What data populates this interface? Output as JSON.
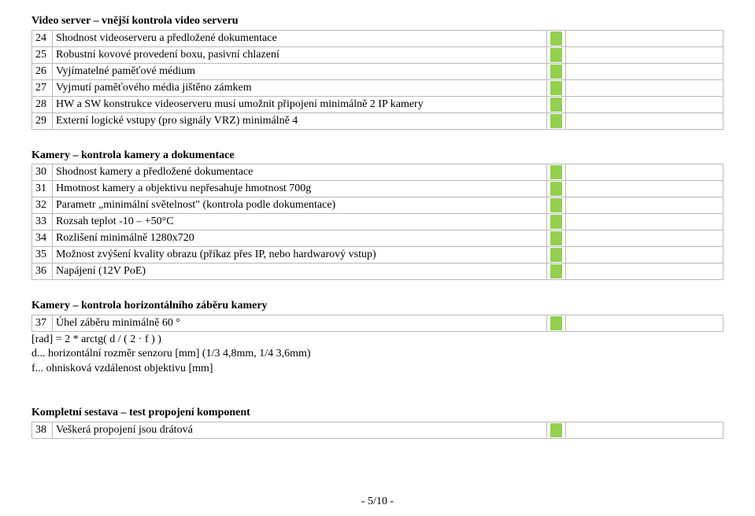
{
  "colors": {
    "mark_green": "#92d050",
    "border": "#b9b9b9",
    "text": "#000000",
    "bg": "#ffffff"
  },
  "sections": {
    "s1": {
      "heading": "Video server – vnější kontrola video serveru",
      "rows": [
        {
          "n": "24",
          "label": "Shodnost videoserveru a předložené dokumentace"
        },
        {
          "n": "25",
          "label": "Robustní kovové provedení boxu, pasivní chlazení"
        },
        {
          "n": "26",
          "label": "Vyjímatelné paměťové médium"
        },
        {
          "n": "27",
          "label": "Vyjmutí paměťového média jištěno zámkem"
        },
        {
          "n": "28",
          "label": "HW a SW konstrukce videoserveru musí umožnit připojení minimálně 2 IP kamery"
        },
        {
          "n": "29",
          "label": "Externí logické vstupy (pro signály VRZ) minimálně 4"
        }
      ]
    },
    "s2": {
      "heading": "Kamery – kontrola kamery a dokumentace",
      "rows": [
        {
          "n": "30",
          "label": "Shodnost kamery a předložené dokumentace"
        },
        {
          "n": "31",
          "label": "Hmotnost kamery a objektivu nepřesahuje hmotnost 700g"
        },
        {
          "n": "32",
          "label": "Parametr „minimální světelnost\" (kontrola podle dokumentace)"
        },
        {
          "n": "33",
          "label": "Rozsah teplot -10 – +50°C"
        },
        {
          "n": "34",
          "label": "Rozlišení minimálně 1280x720"
        },
        {
          "n": "35",
          "label": "Možnost zvýšení kvality obrazu (příkaz přes IP, nebo hardwarový vstup)"
        },
        {
          "n": "36",
          "label": "Napájení (12V PoE)"
        }
      ]
    },
    "s3": {
      "heading": "Kamery – kontrola horizontálního záběru kamery",
      "rows": [
        {
          "n": "37",
          "label": "Úhel záběru minimálně 60 °"
        }
      ],
      "notes": [
        "[rad] = 2 * arctg( d / ( 2 · f ) )",
        "d... horizontální rozměr senzoru [mm] (1/3 4,8mm, 1/4 3,6mm)",
        "f... ohnisková vzdálenost objektivu [mm]"
      ]
    },
    "s4": {
      "heading": "Kompletní sestava – test propojení komponent",
      "rows": [
        {
          "n": "38",
          "label": "Veškerá propojení jsou drátová"
        }
      ]
    }
  },
  "footer": "- 5/10 -"
}
